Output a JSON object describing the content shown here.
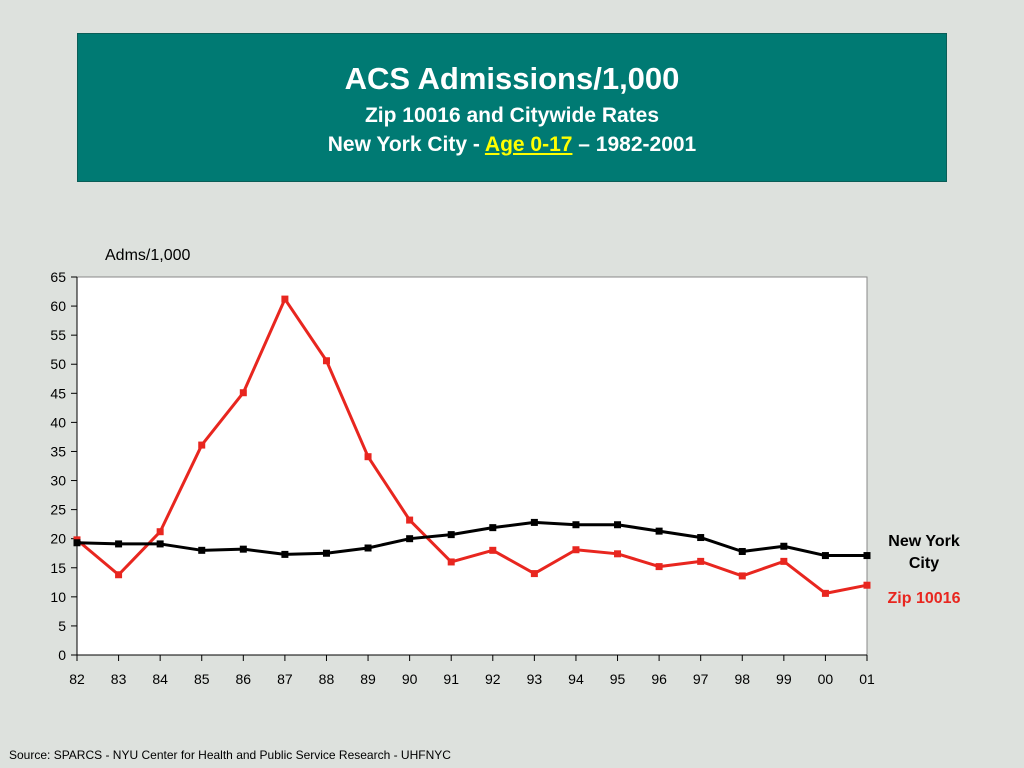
{
  "header": {
    "title": "ACS Admissions/1,000",
    "subtitle": "Zip 10016 and Citywide Rates",
    "subtitle2_prefix": "New York City - ",
    "subtitle2_highlight": "Age 0-17",
    "subtitle2_suffix": " – 1982-2001"
  },
  "source": "Source:  SPARCS - NYU Center for Health and Public Service Research - UHFNYC",
  "colors": {
    "background": "#dde1dd",
    "title_box": "#007a73",
    "highlight": "#ffff00",
    "nyc_series": "#000000",
    "zip_series": "#e8261f"
  },
  "chart_data": {
    "type": "line",
    "ylabel": "Adms/1,000",
    "xlabel": "",
    "categories": [
      "82",
      "83",
      "84",
      "85",
      "86",
      "87",
      "88",
      "89",
      "90",
      "91",
      "92",
      "93",
      "94",
      "95",
      "96",
      "97",
      "98",
      "99",
      "00",
      "01"
    ],
    "ylim": [
      0,
      65
    ],
    "yticks": [
      0,
      5,
      10,
      15,
      20,
      25,
      30,
      35,
      40,
      45,
      50,
      55,
      60,
      65
    ],
    "grid": false,
    "legend_placement": "right",
    "series": [
      {
        "name": "New York City",
        "color": "#000000",
        "values": [
          19.3,
          19.1,
          19.1,
          18.0,
          18.2,
          17.3,
          17.5,
          18.4,
          20.0,
          20.7,
          21.9,
          22.8,
          22.4,
          22.4,
          21.3,
          20.2,
          17.8,
          18.7,
          17.1,
          17.1
        ]
      },
      {
        "name": "Zip 10016",
        "color": "#e8261f",
        "values": [
          19.8,
          13.8,
          21.2,
          36.1,
          45.1,
          61.2,
          50.6,
          34.1,
          23.2,
          16.0,
          18.0,
          14.0,
          18.1,
          17.4,
          15.2,
          16.1,
          13.6,
          16.1,
          10.6,
          12.0
        ]
      }
    ]
  }
}
